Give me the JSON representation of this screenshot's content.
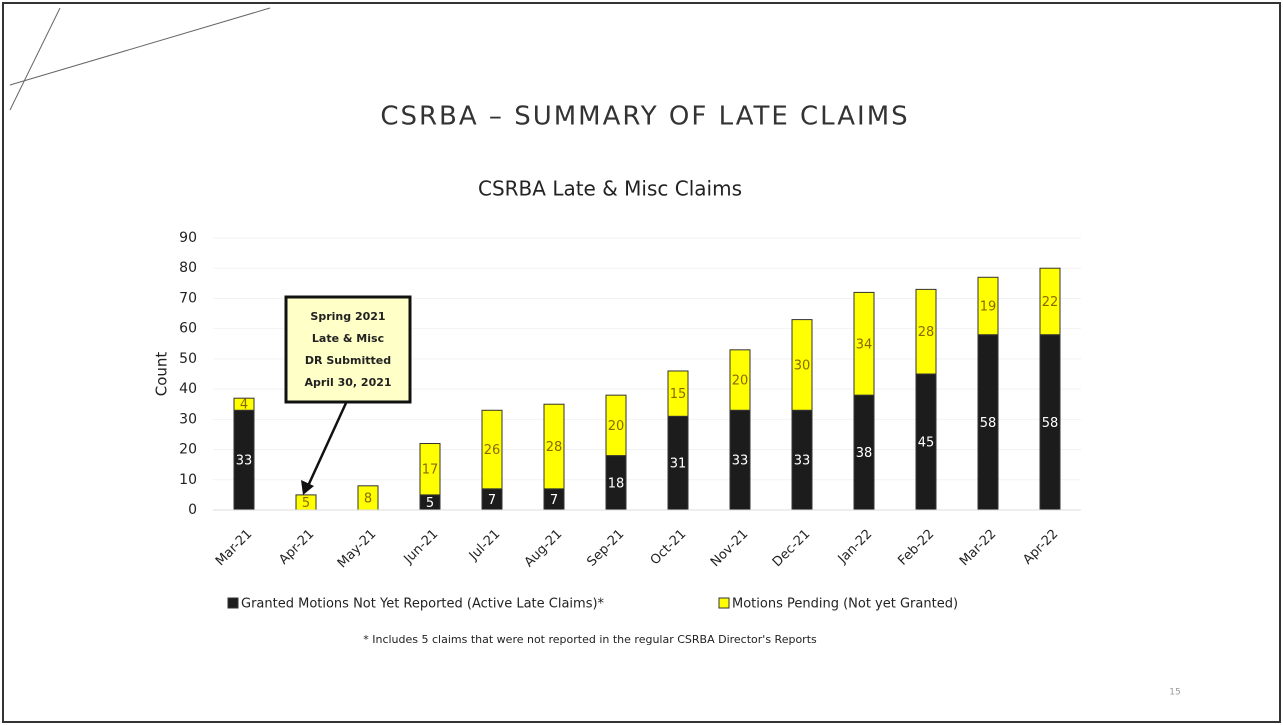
{
  "slide_title": "CSRBA – SUMMARY OF LATE CLAIMS",
  "page_number": "15",
  "footnote": "* Includes 5 claims that were not reported in the regular CSRBA Director's Reports",
  "chart_data": {
    "type": "stacked_bar",
    "title": "CSRBA Late & Misc Claims",
    "y_label": "Count",
    "categories": [
      "Mar-21",
      "Apr-21",
      "May-21",
      "Jun-21",
      "Jul-21",
      "Aug-21",
      "Sep-21",
      "Oct-21",
      "Nov-21",
      "Dec-21",
      "Jan-22",
      "Feb-22",
      "Mar-22",
      "Apr-22"
    ],
    "series": [
      {
        "name": "Granted Motions Not Yet Reported (Active Late Claims)*",
        "color": "#1c1c1c",
        "label_color": "#ffffff",
        "values": [
          33,
          null,
          null,
          5,
          7,
          7,
          18,
          31,
          33,
          33,
          38,
          45,
          58,
          58
        ]
      },
      {
        "name": "Motions Pending  (Not yet Granted)",
        "color": "#ffff00",
        "label_color": "#8a6a00",
        "values": [
          4,
          5,
          8,
          17,
          26,
          28,
          20,
          15,
          20,
          30,
          34,
          28,
          19,
          22
        ]
      }
    ],
    "ylim": [
      0,
      90
    ],
    "yticks": [
      0,
      10,
      20,
      30,
      40,
      50,
      60,
      70,
      80,
      90
    ],
    "grid": true,
    "legend": "bottom",
    "annotation": [
      "Spring 2021",
      "Late & Misc",
      "DR Submitted",
      "April 30, 2021"
    ]
  }
}
